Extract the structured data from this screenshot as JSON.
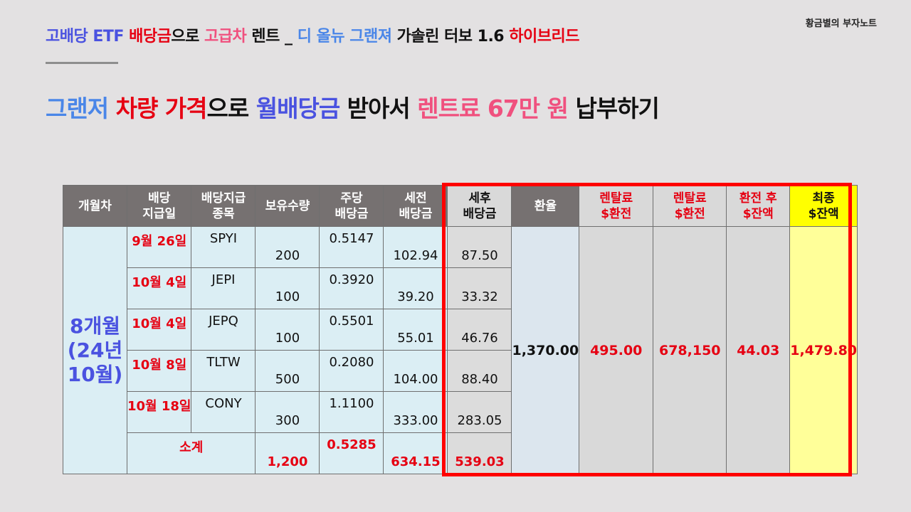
{
  "author": "황금별의 부자노트",
  "top_title": [
    {
      "text": "고배당 ETF ",
      "color": "blue"
    },
    {
      "text": "배당금",
      "color": "red"
    },
    {
      "text": "으로 ",
      "color": "black"
    },
    {
      "text": "고급차",
      "color": "pink"
    },
    {
      "text": " 렌트 _ ",
      "color": "black"
    },
    {
      "text": "디 올뉴 그랜져",
      "color": "lblue"
    },
    {
      "text": " 가솔린 터보 1.6 ",
      "color": "black"
    },
    {
      "text": "하이브리드",
      "color": "red"
    }
  ],
  "main_title": [
    {
      "text": "그랜저 ",
      "color": "lblue"
    },
    {
      "text": "차량 가격",
      "color": "red"
    },
    {
      "text": "으로 ",
      "color": "black"
    },
    {
      "text": "월배당금",
      "color": "blue"
    },
    {
      "text": " 받아서 ",
      "color": "black"
    },
    {
      "text": "렌트료 67만 원",
      "color": "pink"
    },
    {
      "text": " 납부하기",
      "color": "black"
    }
  ],
  "colors": {
    "blue": "#4a52e0",
    "lblue": "#4a86e8",
    "red": "#e60012",
    "pink": "#f0507e",
    "black": "#111111",
    "highlight_border": "#ff0000",
    "final_column": "#ffff00"
  },
  "table": {
    "headers": {
      "period": "개월차",
      "pay_date": "배당\n지급일",
      "ticker": "배당지급\n종목",
      "shares": "보유수량",
      "dps": "주당\n배당금",
      "pretax": "세전\n배당금",
      "aftertax": "세후\n배당금",
      "fx": "환율",
      "rent_usd": "렌탈료\n$환전",
      "rent_krw": "렌탈료\n$환전",
      "balance": "환전 후\n$잔액",
      "final": "최종\n$잔액"
    },
    "period_label": "8개월\n(24년\n10월)",
    "rows": [
      {
        "date": "9월 26일",
        "ticker": "SPYI",
        "shares": "200",
        "dps": "0.5147",
        "pretax": "102.94",
        "aftertax": "87.50"
      },
      {
        "date": "10월 4일",
        "ticker": "JEPI",
        "shares": "100",
        "dps": "0.3920",
        "pretax": "39.20",
        "aftertax": "33.32"
      },
      {
        "date": "10월 4일",
        "ticker": "JEPQ",
        "shares": "100",
        "dps": "0.5501",
        "pretax": "55.01",
        "aftertax": "46.76"
      },
      {
        "date": "10월 8일",
        "ticker": "TLTW",
        "shares": "500",
        "dps": "0.2080",
        "pretax": "104.00",
        "aftertax": "88.40"
      },
      {
        "date": "10월 18일",
        "ticker": "CONY",
        "shares": "300",
        "dps": "1.1100",
        "pretax": "333.00",
        "aftertax": "283.05"
      }
    ],
    "subtotal": {
      "label": "소계",
      "shares": "1,200",
      "dps": "0.5285",
      "pretax": "634.15",
      "aftertax": "539.03"
    },
    "fx_rate": "1,370.00",
    "rent_usd": "495.00",
    "rent_krw": "678,150",
    "balance": "44.03",
    "final_balance": "1,479.80"
  }
}
